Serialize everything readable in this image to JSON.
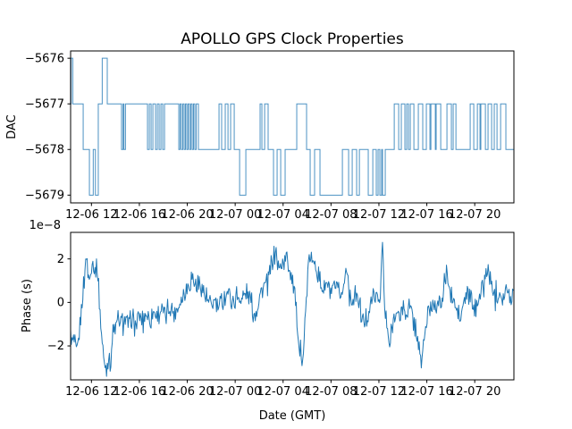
{
  "figure": {
    "title": "APOLLO GPS Clock Properties",
    "background_color": "#ffffff",
    "line_color": "#1f77b4",
    "text_color": "#000000",
    "grid": false,
    "legend": "none"
  },
  "chart_data": [
    {
      "type": "line",
      "subplot": "top",
      "series_name": "DAC",
      "ylabel": "DAC",
      "draw_style": "steps",
      "x_unit": "hours relative to first tick (12-06 12)",
      "xlim": [
        -1.74,
        35.27
      ],
      "ylim": [
        -5679.17,
        -5675.84
      ],
      "yticks": [
        -5676,
        -5677,
        -5678,
        -5679
      ],
      "ytick_labels": [
        "−5676",
        "−5677",
        "−5678",
        "−5679"
      ],
      "xticks": [
        0,
        4,
        8,
        12,
        16,
        20,
        24,
        28,
        32
      ],
      "xtick_labels": [
        "12-06 12",
        "12-06 16",
        "12-06 20",
        "12-07 00",
        "12-07 04",
        "12-07 08",
        "12-07 12",
        "12-07 16",
        "12-07 20"
      ],
      "steps_t_v": [
        [
          -1.74,
          -5677
        ],
        [
          -1.7,
          -5676
        ],
        [
          -1.56,
          -5677
        ],
        [
          -0.69,
          -5678
        ],
        [
          -0.17,
          -5679
        ],
        [
          0.15,
          -5678
        ],
        [
          0.33,
          -5679
        ],
        [
          0.57,
          -5677
        ],
        [
          0.9,
          -5676
        ],
        [
          1.32,
          -5677
        ],
        [
          2.51,
          -5678
        ],
        [
          2.64,
          -5677
        ],
        [
          2.71,
          -5678
        ],
        [
          2.84,
          -5677
        ],
        [
          4.68,
          -5678
        ],
        [
          4.83,
          -5677
        ],
        [
          4.98,
          -5678
        ],
        [
          5.13,
          -5677
        ],
        [
          5.35,
          -5678
        ],
        [
          5.5,
          -5677
        ],
        [
          5.65,
          -5678
        ],
        [
          5.8,
          -5677
        ],
        [
          5.95,
          -5678
        ],
        [
          6.1,
          -5677
        ],
        [
          7.29,
          -5678
        ],
        [
          7.4,
          -5677
        ],
        [
          7.51,
          -5678
        ],
        [
          7.63,
          -5677
        ],
        [
          7.74,
          -5678
        ],
        [
          7.85,
          -5677
        ],
        [
          7.96,
          -5678
        ],
        [
          8.07,
          -5677
        ],
        [
          8.19,
          -5678
        ],
        [
          8.3,
          -5677
        ],
        [
          8.41,
          -5678
        ],
        [
          8.52,
          -5677
        ],
        [
          8.63,
          -5678
        ],
        [
          8.75,
          -5677
        ],
        [
          8.93,
          -5678
        ],
        [
          10.65,
          -5677
        ],
        [
          10.87,
          -5678
        ],
        [
          11.17,
          -5677
        ],
        [
          11.4,
          -5678
        ],
        [
          11.62,
          -5677
        ],
        [
          11.92,
          -5678
        ],
        [
          12.37,
          -5679
        ],
        [
          12.89,
          -5678
        ],
        [
          14.08,
          -5677
        ],
        [
          14.23,
          -5678
        ],
        [
          14.46,
          -5677
        ],
        [
          14.75,
          -5678
        ],
        [
          15.2,
          -5679
        ],
        [
          15.5,
          -5678
        ],
        [
          15.8,
          -5679
        ],
        [
          16.17,
          -5678
        ],
        [
          17.14,
          -5677
        ],
        [
          17.96,
          -5678
        ],
        [
          18.26,
          -5679
        ],
        [
          18.63,
          -5678
        ],
        [
          19.08,
          -5679
        ],
        [
          20.95,
          -5678
        ],
        [
          21.47,
          -5679
        ],
        [
          21.77,
          -5678
        ],
        [
          22.14,
          -5679
        ],
        [
          22.37,
          -5678
        ],
        [
          23.11,
          -5679
        ],
        [
          23.49,
          -5678
        ],
        [
          23.78,
          -5679
        ],
        [
          23.93,
          -5678
        ],
        [
          24.08,
          -5679
        ],
        [
          24.23,
          -5678
        ],
        [
          24.3,
          -5679
        ],
        [
          24.53,
          -5678
        ],
        [
          25.28,
          -5677
        ],
        [
          25.65,
          -5678
        ],
        [
          25.87,
          -5677
        ],
        [
          26.17,
          -5678
        ],
        [
          26.32,
          -5677
        ],
        [
          26.47,
          -5678
        ],
        [
          26.62,
          -5677
        ],
        [
          26.92,
          -5678
        ],
        [
          27.29,
          -5677
        ],
        [
          27.66,
          -5678
        ],
        [
          27.96,
          -5677
        ],
        [
          28.26,
          -5678
        ],
        [
          28.34,
          -5677
        ],
        [
          28.71,
          -5678
        ],
        [
          28.78,
          -5677
        ],
        [
          29.16,
          -5678
        ],
        [
          29.68,
          -5677
        ],
        [
          30.05,
          -5678
        ],
        [
          30.2,
          -5677
        ],
        [
          30.43,
          -5678
        ],
        [
          31.62,
          -5677
        ],
        [
          31.92,
          -5678
        ],
        [
          32.22,
          -5677
        ],
        [
          32.44,
          -5678
        ],
        [
          32.51,
          -5677
        ],
        [
          32.89,
          -5678
        ],
        [
          33.11,
          -5677
        ],
        [
          33.41,
          -5678
        ],
        [
          33.63,
          -5677
        ],
        [
          33.86,
          -5678
        ],
        [
          34.16,
          -5677
        ],
        [
          34.6,
          -5678
        ]
      ],
      "t_end": 35.27
    },
    {
      "type": "line",
      "subplot": "bottom",
      "series_name": "Phase",
      "ylabel": "Phase (s)",
      "xlabel": "Date (GMT)",
      "offset_text": "1e−8",
      "y_unit_scale": "1e-8",
      "x_unit": "hours relative to first tick (12-06 12)",
      "xlim": [
        -1.74,
        35.27
      ],
      "ylim": [
        -3.56,
        3.22
      ],
      "yticks": [
        -2,
        0,
        2
      ],
      "ytick_labels": [
        "−2",
        "0",
        "2"
      ],
      "xticks": [
        0,
        4,
        8,
        12,
        16,
        20,
        24,
        28,
        32
      ],
      "xtick_labels": [
        "12-06 12",
        "12-06 16",
        "12-06 20",
        "12-07 00",
        "12-07 04",
        "12-07 08",
        "12-07 12",
        "12-07 16",
        "12-07 20"
      ],
      "noise_amplitude": 0.45,
      "sample_step_hours": 0.06,
      "envelope_t_v": [
        [
          -1.74,
          -1.7
        ],
        [
          -1.44,
          -1.9
        ],
        [
          -1.22,
          -2.3
        ],
        [
          -0.99,
          -1.4
        ],
        [
          -0.77,
          0.0
        ],
        [
          -0.54,
          1.3
        ],
        [
          -0.47,
          2.3
        ],
        [
          -0.17,
          0.9
        ],
        [
          0.05,
          2.0
        ],
        [
          0.28,
          1.3
        ],
        [
          0.5,
          1.5
        ],
        [
          0.65,
          0.3
        ],
        [
          0.8,
          -1.2
        ],
        [
          1.02,
          -2.6
        ],
        [
          1.25,
          -3.1
        ],
        [
          1.4,
          -2.4
        ],
        [
          1.55,
          -2.9
        ],
        [
          1.77,
          -1.6
        ],
        [
          1.99,
          -1.1
        ],
        [
          2.22,
          -0.9
        ],
        [
          2.52,
          -1.0
        ],
        [
          2.81,
          -0.7
        ],
        [
          3.11,
          -1.1
        ],
        [
          3.41,
          -0.8
        ],
        [
          3.71,
          -1.0
        ],
        [
          4.0,
          -0.6
        ],
        [
          4.31,
          -0.9
        ],
        [
          4.6,
          -0.5
        ],
        [
          4.9,
          -0.8
        ],
        [
          5.2,
          -0.4
        ],
        [
          5.5,
          -0.7
        ],
        [
          5.8,
          -0.3
        ],
        [
          6.17,
          -0.6
        ],
        [
          6.54,
          -0.2
        ],
        [
          6.92,
          -0.5
        ],
        [
          7.29,
          -0.1
        ],
        [
          7.66,
          0.3
        ],
        [
          8.04,
          0.8
        ],
        [
          8.41,
          1.2
        ],
        [
          8.78,
          0.6
        ],
        [
          9.16,
          0.9
        ],
        [
          9.53,
          0.2
        ],
        [
          9.9,
          -0.2
        ],
        [
          10.28,
          0.1
        ],
        [
          10.65,
          -0.3
        ],
        [
          11.02,
          0.2
        ],
        [
          11.4,
          0.5
        ],
        [
          11.77,
          0.0
        ],
        [
          12.14,
          0.3
        ],
        [
          12.52,
          0.1
        ],
        [
          12.89,
          0.4
        ],
        [
          13.26,
          0.2
        ],
        [
          13.63,
          -0.6
        ],
        [
          14.01,
          0.3
        ],
        [
          14.38,
          0.7
        ],
        [
          14.75,
          1.0
        ],
        [
          15.13,
          1.9
        ],
        [
          15.35,
          2.4
        ],
        [
          15.65,
          1.5
        ],
        [
          15.95,
          1.8
        ],
        [
          16.25,
          2.0
        ],
        [
          16.55,
          1.6
        ],
        [
          16.84,
          1.1
        ],
        [
          17.07,
          0.0
        ],
        [
          17.22,
          -1.6
        ],
        [
          17.37,
          -2.6
        ],
        [
          17.52,
          -2.2
        ],
        [
          17.67,
          -2.5
        ],
        [
          17.81,
          -1.2
        ],
        [
          17.96,
          0.4
        ],
        [
          18.11,
          1.6
        ],
        [
          18.26,
          2.3
        ],
        [
          18.48,
          1.5
        ],
        [
          18.63,
          2.1
        ],
        [
          18.86,
          1.3
        ],
        [
          19.08,
          0.9
        ],
        [
          19.38,
          0.6
        ],
        [
          19.68,
          0.8
        ],
        [
          19.98,
          0.4
        ],
        [
          20.35,
          0.6
        ],
        [
          20.72,
          0.3
        ],
        [
          21.02,
          0.5
        ],
        [
          21.32,
          1.9
        ],
        [
          21.54,
          0.3
        ],
        [
          21.84,
          0.1
        ],
        [
          22.14,
          0.3
        ],
        [
          22.44,
          -0.2
        ],
        [
          22.74,
          -1.1
        ],
        [
          22.96,
          -0.7
        ],
        [
          23.19,
          -0.2
        ],
        [
          23.49,
          0.2
        ],
        [
          23.78,
          0.3
        ],
        [
          24.08,
          0.1
        ],
        [
          24.31,
          2.9
        ],
        [
          24.46,
          -0.3
        ],
        [
          24.68,
          -1.2
        ],
        [
          24.91,
          -2.1
        ],
        [
          25.13,
          -1.0
        ],
        [
          25.35,
          -0.4
        ],
        [
          25.65,
          -0.7
        ],
        [
          25.95,
          -0.2
        ],
        [
          26.25,
          -0.5
        ],
        [
          26.54,
          -0.3
        ],
        [
          26.84,
          -0.6
        ],
        [
          27.14,
          -1.4
        ],
        [
          27.37,
          -2.3
        ],
        [
          27.51,
          -3.0
        ],
        [
          27.66,
          -2.2
        ],
        [
          27.89,
          -1.2
        ],
        [
          28.11,
          -0.5
        ],
        [
          28.41,
          -0.2
        ],
        [
          28.71,
          0.1
        ],
        [
          29.01,
          -0.1
        ],
        [
          29.31,
          0.2
        ],
        [
          29.68,
          1.4
        ],
        [
          29.98,
          0.3
        ],
        [
          30.28,
          -0.1
        ],
        [
          30.58,
          -0.5
        ],
        [
          30.8,
          -0.9
        ],
        [
          31.1,
          0.1
        ],
        [
          31.4,
          0.4
        ],
        [
          31.7,
          0.1
        ],
        [
          32.0,
          -0.4
        ],
        [
          32.3,
          0.2
        ],
        [
          32.6,
          0.5
        ],
        [
          32.9,
          1.1
        ],
        [
          33.12,
          1.6
        ],
        [
          33.42,
          0.6
        ],
        [
          33.71,
          0.3
        ],
        [
          34.01,
          0.6
        ],
        [
          34.31,
          0.2
        ],
        [
          34.61,
          0.5
        ],
        [
          34.91,
          0.2
        ],
        [
          35.27,
          0.4
        ]
      ]
    }
  ]
}
